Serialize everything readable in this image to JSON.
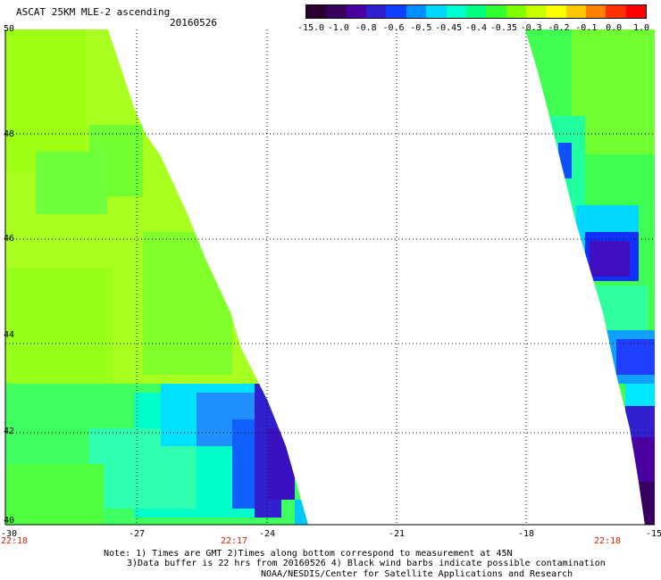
{
  "header": {
    "title": "ASCAT 25KM MLE-2 ascending",
    "date": "20160526"
  },
  "colorbar": {
    "labels": [
      "-15.0",
      "-1.0",
      "-0.8",
      "-0.6",
      "-0.5",
      "-0.45",
      "-0.4",
      "-0.35",
      "-0.3",
      "-0.2",
      "-0.1",
      "0.0",
      "1.0"
    ],
    "colors": [
      "#2a0030",
      "#3a0060",
      "#4b00a0",
      "#3020d0",
      "#1040ff",
      "#0090ff",
      "#00d8ff",
      "#00ffd0",
      "#00ff80",
      "#30ff30",
      "#80ff00",
      "#c8ff00",
      "#ffff00",
      "#ffc800",
      "#ff8000",
      "#ff3000",
      "#ff0000"
    ]
  },
  "axes": {
    "y_labels": [
      "50",
      "48",
      "46",
      "44",
      "42",
      "40"
    ],
    "x_labels": [
      "-30",
      "-27",
      "-24",
      "-21",
      "-18",
      "-15"
    ],
    "time_labels": [
      "22:18",
      "22:17",
      "22:18"
    ]
  },
  "notes": {
    "line1": "Note: 1) Times are GMT 2)Times along bottom correspond to measurement at 45N",
    "line2": "3)Data buffer is 22 hrs from 20160526 4) Black wind barbs indicate possible contamination",
    "line3": "NOAA/NESDIS/Center for Satellite Applications and Research"
  }
}
